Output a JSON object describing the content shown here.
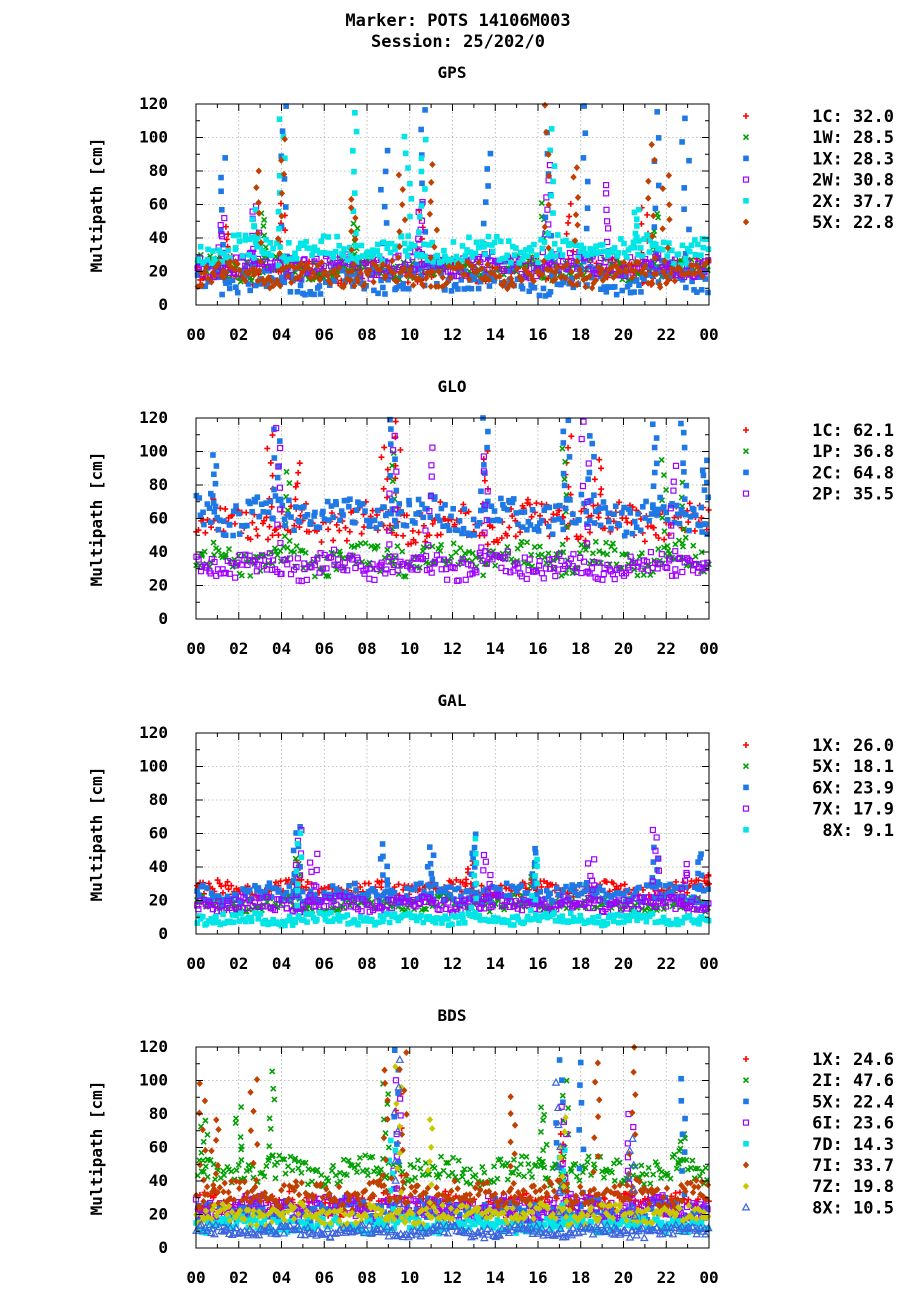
{
  "header": {
    "title_line1": "Marker: POTS 14106M003",
    "title_line2": "Session: 25/202/0"
  },
  "axes": {
    "ylabel": "Multipath [cm]",
    "x_ticks": [
      "00",
      "02",
      "04",
      "06",
      "08",
      "10",
      "12",
      "14",
      "16",
      "18",
      "20",
      "22",
      "00"
    ],
    "y_ticks": [
      "0",
      "20",
      "40",
      "60",
      "80",
      "100",
      "120"
    ]
  },
  "chart_data": [
    {
      "type": "scatter",
      "title": "GPS",
      "ylabel": "Multipath [cm]",
      "x_unit": "hour of day",
      "xlim": [
        0,
        24
      ],
      "ylim": [
        0,
        120
      ],
      "grid": true,
      "legend_position": "right",
      "series": [
        {
          "name": "1C",
          "legend": "1C: 32.0",
          "value": 32.0,
          "color": "#ff0000",
          "marker": "plus",
          "base": 20,
          "spread": 6,
          "peaks": [
            [
              1.5,
              45
            ],
            [
              4.0,
              60
            ],
            [
              10.5,
              55
            ],
            [
              17.5,
              60
            ],
            [
              21.0,
              58
            ]
          ]
        },
        {
          "name": "1W",
          "legend": "1W: 28.5",
          "value": 28.5,
          "color": "#00a000",
          "marker": "cross",
          "base": 22,
          "spread": 6,
          "peaks": [
            [
              3.2,
              55
            ],
            [
              7.5,
              50
            ],
            [
              16.3,
              60
            ],
            [
              21.5,
              55
            ]
          ]
        },
        {
          "name": "1X",
          "legend": "1X: 28.3",
          "value": 28.3,
          "color": "#1e78e6",
          "marker": "square",
          "base": 16,
          "spread": 8,
          "peaks": [
            [
              1.2,
              86
            ],
            [
              4.1,
              118
            ],
            [
              8.8,
              92
            ],
            [
              10.6,
              118
            ],
            [
              13.6,
              92
            ],
            [
              16.5,
              102
            ],
            [
              18.2,
              118
            ],
            [
              21.6,
              116
            ],
            [
              22.9,
              112
            ]
          ]
        },
        {
          "name": "2W",
          "legend": "2W: 30.8",
          "value": 30.8,
          "color": "#a000ff",
          "marker": "opensquare",
          "base": 24,
          "spread": 6,
          "peaks": [
            [
              1.2,
              52
            ],
            [
              2.8,
              60
            ],
            [
              10.5,
              62
            ],
            [
              16.4,
              82
            ],
            [
              19.2,
              72
            ]
          ]
        },
        {
          "name": "2X",
          "legend": "2X: 37.7",
          "value": 37.7,
          "color": "#00e6e6",
          "marker": "square",
          "base": 33,
          "spread": 7,
          "peaks": [
            [
              2.7,
              55
            ],
            [
              4.0,
              110
            ],
            [
              7.4,
              116
            ],
            [
              9.9,
              100
            ],
            [
              10.6,
              98
            ],
            [
              16.6,
              104
            ],
            [
              20.6,
              58
            ]
          ]
        },
        {
          "name": "5X",
          "legend": "5X: 22.8",
          "value": 22.8,
          "color": "#c04000",
          "marker": "diamond",
          "base": 18,
          "spread": 6,
          "peaks": [
            [
              2.9,
              80
            ],
            [
              4.0,
              100
            ],
            [
              7.3,
              65
            ],
            [
              9.6,
              78
            ],
            [
              11.1,
              82
            ],
            [
              16.4,
              118
            ],
            [
              17.8,
              84
            ],
            [
              21.3,
              96
            ],
            [
              22.0,
              78
            ]
          ]
        }
      ]
    },
    {
      "type": "scatter",
      "title": "GLO",
      "ylabel": "Multipath [cm]",
      "x_unit": "hour of day",
      "xlim": [
        0,
        24
      ],
      "ylim": [
        0,
        120
      ],
      "grid": true,
      "legend_position": "right",
      "series": [
        {
          "name": "1C",
          "legend": "1C: 62.1",
          "value": 62.1,
          "color": "#ff0000",
          "marker": "plus",
          "base": 58,
          "spread": 10,
          "peaks": [
            [
              3.5,
              108
            ],
            [
              4.8,
              92
            ],
            [
              8.8,
              102
            ],
            [
              9.5,
              118
            ],
            [
              13.5,
              100
            ],
            [
              17.4,
              110
            ],
            [
              18.8,
              95
            ]
          ]
        },
        {
          "name": "1P",
          "legend": "1P: 36.8",
          "value": 36.8,
          "color": "#00a000",
          "marker": "cross",
          "base": 36,
          "spread": 8,
          "peaks": [
            [
              4.2,
              88
            ],
            [
              9.3,
              100
            ],
            [
              17.2,
              102
            ],
            [
              21.9,
              96
            ],
            [
              22.8,
              80
            ]
          ]
        },
        {
          "name": "2C",
          "legend": "2C: 64.8",
          "value": 64.8,
          "color": "#1e78e6",
          "marker": "square",
          "base": 62,
          "spread": 9,
          "peaks": [
            [
              0.8,
              96
            ],
            [
              3.8,
              112
            ],
            [
              9.2,
              120
            ],
            [
              13.5,
              118
            ],
            [
              17.3,
              120
            ],
            [
              18.5,
              110
            ],
            [
              21.5,
              118
            ],
            [
              22.8,
              118
            ],
            [
              23.8,
              94
            ]
          ]
        },
        {
          "name": "2P",
          "legend": "2P: 35.5",
          "value": 35.5,
          "color": "#a000ff",
          "marker": "opensquare",
          "base": 32,
          "spread": 7,
          "peaks": [
            [
              3.8,
              114
            ],
            [
              9.2,
              110
            ],
            [
              10.9,
              104
            ],
            [
              13.5,
              96
            ],
            [
              18.2,
              118
            ],
            [
              22.3,
              92
            ]
          ]
        }
      ]
    },
    {
      "type": "scatter",
      "title": "GAL",
      "ylabel": "Multipath [cm]",
      "x_unit": "hour of day",
      "xlim": [
        0,
        24
      ],
      "ylim": [
        0,
        120
      ],
      "grid": true,
      "legend_position": "right",
      "series": [
        {
          "name": "1X",
          "legend": "1X: 26.0",
          "value": 26.0,
          "color": "#ff0000",
          "marker": "plus",
          "base": 27,
          "spread": 4,
          "peaks": [
            [
              4.8,
              42
            ],
            [
              12.8,
              42
            ],
            [
              23.9,
              36
            ]
          ]
        },
        {
          "name": "5X",
          "legend": "5X: 18.1",
          "value": 18.1,
          "color": "#00a000",
          "marker": "cross",
          "base": 18,
          "spread": 4,
          "peaks": [
            [
              4.8,
              45
            ],
            [
              15.8,
              42
            ]
          ]
        },
        {
          "name": "6X",
          "legend": "6X: 23.9",
          "value": 23.9,
          "color": "#1e78e6",
          "marker": "square",
          "base": 24,
          "spread": 5,
          "peaks": [
            [
              4.7,
              66
            ],
            [
              8.8,
              52
            ],
            [
              11.0,
              50
            ],
            [
              13.0,
              58
            ],
            [
              15.8,
              52
            ],
            [
              21.5,
              50
            ],
            [
              23.5,
              48
            ]
          ]
        },
        {
          "name": "7X",
          "legend": "7X: 17.9",
          "value": 17.9,
          "color": "#a000ff",
          "marker": "opensquare",
          "base": 18,
          "spread": 4,
          "peaks": [
            [
              4.8,
              62
            ],
            [
              5.5,
              48
            ],
            [
              13.6,
              46
            ],
            [
              18.5,
              44
            ],
            [
              21.5,
              62
            ],
            [
              22.8,
              40
            ]
          ]
        },
        {
          "name": "8X",
          "legend": "8X:  9.1",
          "value": 9.1,
          "color": "#00e6e6",
          "marker": "square",
          "base": 9,
          "spread": 3,
          "peaks": [
            [
              4.8,
              62
            ],
            [
              13.0,
              55
            ],
            [
              15.8,
              44
            ]
          ]
        }
      ]
    },
    {
      "type": "scatter",
      "title": "BDS",
      "ylabel": "Multipath [cm]",
      "x_unit": "hour of day",
      "xlim": [
        0,
        24
      ],
      "ylim": [
        0,
        120
      ],
      "grid": true,
      "legend_position": "right",
      "series": [
        {
          "name": "1X",
          "legend": "1X: 24.6",
          "value": 24.6,
          "color": "#ff0000",
          "marker": "plus",
          "base": 26,
          "spread": 6,
          "peaks": [
            [
              9.5,
              90
            ],
            [
              17.2,
              70
            ]
          ]
        },
        {
          "name": "2I",
          "legend": "2I: 47.6",
          "value": 47.6,
          "color": "#00a000",
          "marker": "cross",
          "base": 46,
          "spread": 7,
          "peaks": [
            [
              0.4,
              76
            ],
            [
              2.0,
              84
            ],
            [
              3.5,
              104
            ],
            [
              8.9,
              100
            ],
            [
              16.3,
              86
            ],
            [
              17.3,
              100
            ],
            [
              22.7,
              70
            ]
          ]
        },
        {
          "name": "5X",
          "legend": "5X: 22.4",
          "value": 22.4,
          "color": "#1e78e6",
          "marker": "square",
          "base": 22,
          "spread": 6,
          "peaks": [
            [
              9.3,
              120
            ],
            [
              17.0,
              114
            ],
            [
              18.0,
              110
            ],
            [
              22.8,
              100
            ]
          ]
        },
        {
          "name": "6I",
          "legend": "6I: 23.6",
          "value": 23.6,
          "color": "#a000ff",
          "marker": "opensquare",
          "base": 24,
          "spread": 6,
          "peaks": [
            [
              9.4,
              100
            ],
            [
              17.2,
              84
            ],
            [
              20.3,
              80
            ]
          ]
        },
        {
          "name": "7D",
          "legend": "7D: 14.3",
          "value": 14.3,
          "color": "#00e6e6",
          "marker": "square",
          "base": 14,
          "spread": 4,
          "peaks": [
            [
              9.2,
              66
            ],
            [
              17.1,
              60
            ]
          ]
        },
        {
          "name": "7I",
          "legend": "7I: 33.7",
          "value": 33.7,
          "color": "#c04000",
          "marker": "diamond",
          "base": 32,
          "spread": 7,
          "peaks": [
            [
              0.3,
              98
            ],
            [
              0.9,
              76
            ],
            [
              2.7,
              102
            ],
            [
              8.8,
              108
            ],
            [
              9.7,
              118
            ],
            [
              14.8,
              90
            ],
            [
              18.7,
              112
            ],
            [
              20.4,
              118
            ]
          ]
        },
        {
          "name": "7Z",
          "legend": "7Z: 19.8",
          "value": 19.8,
          "color": "#c8c800",
          "marker": "diamond",
          "base": 20,
          "spread": 5,
          "peaks": [
            [
              9.5,
              110
            ],
            [
              11.0,
              78
            ],
            [
              17.2,
              76
            ]
          ]
        },
        {
          "name": "8X",
          "legend": "8X: 10.5",
          "value": 10.5,
          "color": "#3c64dc",
          "marker": "triangle",
          "base": 10,
          "spread": 3,
          "peaks": [
            [
              9.4,
              112
            ],
            [
              17.0,
              98
            ],
            [
              20.4,
              64
            ]
          ]
        }
      ]
    }
  ]
}
